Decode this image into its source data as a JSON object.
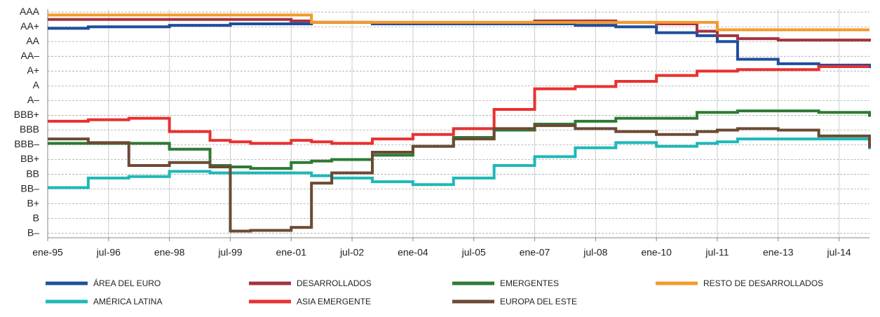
{
  "chart_data": {
    "type": "step-line",
    "x": [
      1995,
      1996,
      1997,
      1998,
      1999,
      1999.5,
      2000,
      2001,
      2001.5,
      2002,
      2003,
      2004,
      2005,
      2006,
      2007,
      2008,
      2009,
      2010,
      2011,
      2011.5,
      2012,
      2013,
      2014,
      2015.25
    ],
    "xlim": [
      1995,
      2015.25
    ],
    "xticks": [
      {
        "value": 1995,
        "label": "ene-95"
      },
      {
        "value": 1996.5,
        "label": "jul-96"
      },
      {
        "value": 1998,
        "label": "ene-98"
      },
      {
        "value": 1999.5,
        "label": "jul-99"
      },
      {
        "value": 2001,
        "label": "ene-01"
      },
      {
        "value": 2002.5,
        "label": "jul-02"
      },
      {
        "value": 2004,
        "label": "ene-04"
      },
      {
        "value": 2005.5,
        "label": "jul-05"
      },
      {
        "value": 2007,
        "label": "ene-07"
      },
      {
        "value": 2008.5,
        "label": "jul-08"
      },
      {
        "value": 2010,
        "label": "ene-10"
      },
      {
        "value": 2011.5,
        "label": "jul-11"
      },
      {
        "value": 2013,
        "label": "ene-13"
      },
      {
        "value": 2014.5,
        "label": "jul-14"
      }
    ],
    "ylim": [
      0.7,
      16.2
    ],
    "yticks": [
      {
        "value": 16,
        "label": "AAA"
      },
      {
        "value": 15,
        "label": "AA+"
      },
      {
        "value": 14,
        "label": "AA"
      },
      {
        "value": 13,
        "label": "AA–"
      },
      {
        "value": 12,
        "label": "A+"
      },
      {
        "value": 11,
        "label": "A"
      },
      {
        "value": 10,
        "label": "A–"
      },
      {
        "value": 9,
        "label": "BBB+"
      },
      {
        "value": 8,
        "label": "BBB"
      },
      {
        "value": 7,
        "label": "BBB–"
      },
      {
        "value": 6,
        "label": "BB+"
      },
      {
        "value": 5,
        "label": "BB"
      },
      {
        "value": 4,
        "label": "BB–"
      },
      {
        "value": 3,
        "label": "B+"
      },
      {
        "value": 2,
        "label": "B"
      },
      {
        "value": 1,
        "label": "B–"
      }
    ],
    "grid": true,
    "series": [
      {
        "name": "ÁREA DEL EURO",
        "color": "#1f4e9b",
        "values": [
          14.9,
          15.0,
          15.0,
          15.1,
          15.1,
          15.2,
          15.2,
          15.2,
          15.3,
          15.3,
          15.2,
          15.2,
          15.2,
          15.2,
          15.2,
          15.1,
          15.0,
          14.6,
          14.4,
          14.0,
          12.8,
          12.5,
          12.4,
          12.2
        ]
      },
      {
        "name": "DESARROLLADOS",
        "color": "#a3333f",
        "values": [
          15.5,
          15.5,
          15.5,
          15.5,
          15.5,
          15.5,
          15.5,
          15.4,
          15.3,
          15.3,
          15.3,
          15.3,
          15.3,
          15.3,
          15.4,
          15.4,
          15.3,
          15.2,
          14.7,
          14.4,
          14.2,
          14.1,
          14.1,
          14.0
        ]
      },
      {
        "name": "EMERGENTES",
        "color": "#2e7a35",
        "values": [
          7.1,
          7.1,
          7.1,
          6.7,
          5.6,
          5.5,
          5.4,
          5.8,
          5.9,
          6.0,
          6.3,
          6.9,
          7.5,
          8.0,
          8.4,
          8.6,
          8.8,
          8.8,
          9.2,
          9.2,
          9.3,
          9.3,
          9.2,
          8.9
        ]
      },
      {
        "name": "RESTO DE DESARROLLADOS",
        "color": "#f39a2b",
        "values": [
          15.8,
          15.8,
          15.8,
          15.8,
          15.8,
          15.8,
          15.8,
          15.8,
          15.3,
          15.3,
          15.3,
          15.3,
          15.3,
          15.3,
          15.3,
          15.3,
          15.3,
          15.3,
          15.3,
          14.8,
          14.8,
          14.8,
          14.8,
          14.8
        ]
      },
      {
        "name": "AMÉRICA LATINA",
        "color": "#1fb8b8",
        "values": [
          4.1,
          4.75,
          4.85,
          5.2,
          5.1,
          5.1,
          5.1,
          5.1,
          4.9,
          4.75,
          4.5,
          4.3,
          4.75,
          5.6,
          6.2,
          6.8,
          7.15,
          6.9,
          7.1,
          7.2,
          7.4,
          7.4,
          7.4,
          6.7
        ]
      },
      {
        "name": "ASIA EMERGENTE",
        "color": "#e8312f",
        "values": [
          8.6,
          8.7,
          8.8,
          7.9,
          7.3,
          7.2,
          7.1,
          7.3,
          7.2,
          7.1,
          7.4,
          7.7,
          8.1,
          9.4,
          10.8,
          10.95,
          11.3,
          11.7,
          12.0,
          12.0,
          12.1,
          12.1,
          12.3,
          12.3
        ]
      },
      {
        "name": "EUROPA DEL ESTE",
        "color": "#6b4a33",
        "values": [
          7.4,
          7.15,
          5.6,
          5.8,
          5.5,
          1.15,
          1.2,
          1.4,
          4.4,
          5.1,
          6.5,
          6.9,
          7.4,
          8.1,
          8.3,
          8.1,
          7.9,
          7.7,
          7.9,
          8.0,
          8.1,
          8.0,
          7.6,
          6.8
        ]
      }
    ]
  }
}
